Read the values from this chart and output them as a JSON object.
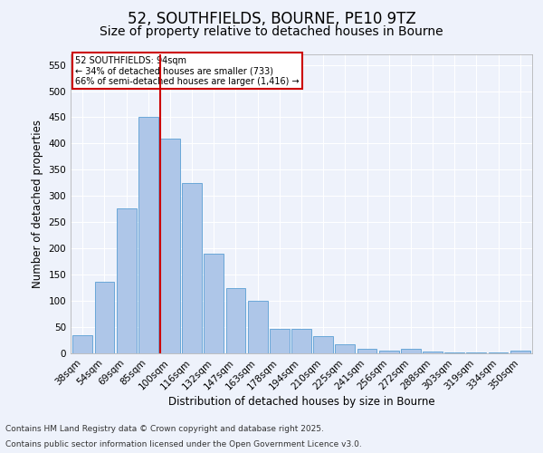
{
  "title": "52, SOUTHFIELDS, BOURNE, PE10 9TZ",
  "subtitle": "Size of property relative to detached houses in Bourne",
  "xlabel": "Distribution of detached houses by size in Bourne",
  "ylabel": "Number of detached properties",
  "categories": [
    "38sqm",
    "54sqm",
    "69sqm",
    "85sqm",
    "100sqm",
    "116sqm",
    "132sqm",
    "147sqm",
    "163sqm",
    "178sqm",
    "194sqm",
    "210sqm",
    "225sqm",
    "241sqm",
    "256sqm",
    "272sqm",
    "288sqm",
    "303sqm",
    "319sqm",
    "334sqm",
    "350sqm"
  ],
  "values": [
    35,
    137,
    277,
    450,
    410,
    325,
    190,
    125,
    100,
    46,
    46,
    32,
    18,
    8,
    5,
    9,
    3,
    2,
    2,
    1,
    5
  ],
  "bar_color": "#aec6e8",
  "bar_edge_color": "#5a9fd4",
  "vline_color": "#cc0000",
  "annotation_title": "52 SOUTHFIELDS: 94sqm",
  "annotation_line1": "← 34% of detached houses are smaller (733)",
  "annotation_line2": "66% of semi-detached houses are larger (1,416) →",
  "annotation_box_color": "#ffffff",
  "annotation_box_edge": "#cc0000",
  "ylim": [
    0,
    570
  ],
  "yticks": [
    0,
    50,
    100,
    150,
    200,
    250,
    300,
    350,
    400,
    450,
    500,
    550
  ],
  "footnote1": "Contains HM Land Registry data © Crown copyright and database right 2025.",
  "footnote2": "Contains public sector information licensed under the Open Government Licence v3.0.",
  "bg_color": "#eef2fb",
  "grid_color": "#ffffff",
  "title_fontsize": 12,
  "subtitle_fontsize": 10,
  "label_fontsize": 8.5,
  "tick_fontsize": 7.5,
  "footnote_fontsize": 6.5
}
